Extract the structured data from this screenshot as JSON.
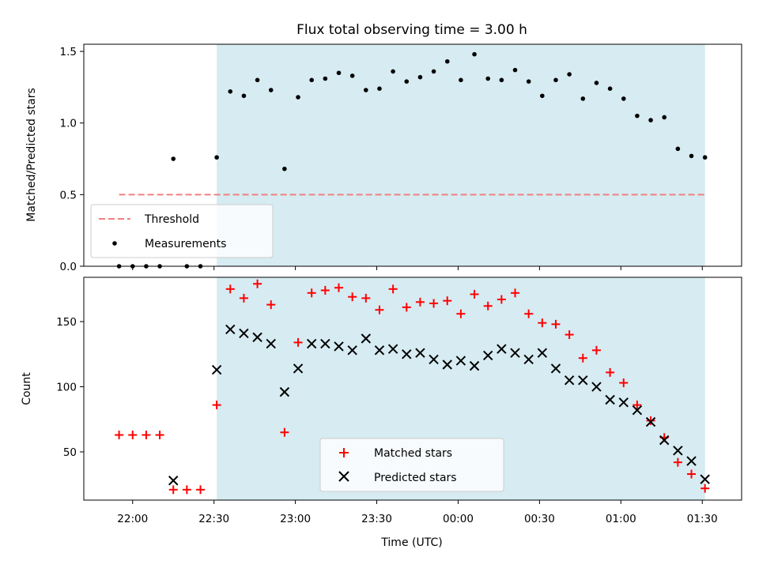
{
  "chart_data": [
    {
      "type": "scatter",
      "title": "Flux total observing time = 3.00 h",
      "ylabel": "Matched/Predicted stars",
      "xlabel": "",
      "ylim": [
        0,
        1.55
      ],
      "y_ticks": [
        "0.0",
        "0.5",
        "1.0",
        "1.5"
      ],
      "y_tick_values": [
        0,
        0.5,
        1.0,
        1.5
      ],
      "threshold": {
        "name": "Threshold",
        "value": 0.5,
        "x_start": "21:55",
        "x_end": "01:31",
        "color": "#f08080"
      },
      "shaded_interval": {
        "x_start": "22:31",
        "x_end": "01:31",
        "color": "#add8e6"
      },
      "series": [
        {
          "name": "Measurements",
          "color": "#000000",
          "x": [
            "21:55",
            "22:00",
            "22:05",
            "22:10",
            "22:15",
            "22:20",
            "22:25",
            "22:31",
            "22:36",
            "22:41",
            "22:46",
            "22:51",
            "22:56",
            "23:01",
            "23:06",
            "23:11",
            "23:16",
            "23:21",
            "23:26",
            "23:31",
            "23:36",
            "23:41",
            "23:46",
            "23:51",
            "23:56",
            "00:01",
            "00:06",
            "00:11",
            "00:16",
            "00:21",
            "00:26",
            "00:31",
            "00:36",
            "00:41",
            "00:46",
            "00:51",
            "00:56",
            "01:01",
            "01:06",
            "01:11",
            "01:16",
            "01:21",
            "01:26",
            "01:31"
          ],
          "values": [
            0,
            0,
            0,
            0,
            0.75,
            0,
            0,
            0.76,
            1.22,
            1.19,
            1.3,
            1.23,
            0.68,
            1.18,
            1.3,
            1.31,
            1.35,
            1.33,
            1.23,
            1.24,
            1.36,
            1.29,
            1.32,
            1.36,
            1.43,
            1.3,
            1.48,
            1.31,
            1.3,
            1.37,
            1.29,
            1.19,
            1.3,
            1.34,
            1.17,
            1.28,
            1.24,
            1.17,
            1.05,
            1.02,
            1.04,
            0.82,
            0.77,
            0.76
          ]
        }
      ],
      "legend": {
        "position": "lower-left",
        "entries": [
          "Threshold",
          "Measurements"
        ]
      }
    },
    {
      "type": "scatter",
      "title": "",
      "xlabel": "Time (UTC)",
      "ylabel": "Count",
      "ylim": [
        13,
        184
      ],
      "y_ticks": [
        "50",
        "100",
        "150"
      ],
      "y_tick_values": [
        50,
        100,
        150
      ],
      "x_ticks": [
        "22:00",
        "22:30",
        "23:00",
        "23:30",
        "00:00",
        "00:30",
        "01:00",
        "01:30"
      ],
      "shaded_interval": {
        "x_start": "22:31",
        "x_end": "01:31",
        "color": "#add8e6"
      },
      "series": [
        {
          "name": "Matched stars",
          "marker": "+",
          "color": "#ff0000",
          "x": [
            "21:55",
            "22:00",
            "22:05",
            "22:10",
            "22:15",
            "22:20",
            "22:25",
            "22:31",
            "22:36",
            "22:41",
            "22:46",
            "22:51",
            "22:56",
            "23:01",
            "23:06",
            "23:11",
            "23:16",
            "23:21",
            "23:26",
            "23:31",
            "23:36",
            "23:41",
            "23:46",
            "23:51",
            "23:56",
            "00:01",
            "00:06",
            "00:11",
            "00:16",
            "00:21",
            "00:26",
            "00:31",
            "00:36",
            "00:41",
            "00:46",
            "00:51",
            "00:56",
            "01:01",
            "01:06",
            "01:11",
            "01:16",
            "01:21",
            "01:26",
            "01:31"
          ],
          "values": [
            63,
            63,
            63,
            63,
            21,
            21,
            21,
            86,
            175,
            168,
            179,
            163,
            65,
            134,
            172,
            174,
            176,
            169,
            168,
            159,
            175,
            161,
            165,
            164,
            166,
            156,
            171,
            162,
            167,
            172,
            156,
            149,
            148,
            140,
            122,
            128,
            111,
            103,
            86,
            74,
            61,
            42,
            33,
            22
          ]
        },
        {
          "name": "Predicted stars",
          "marker": "x",
          "color": "#000000",
          "x": [
            "22:15",
            "22:31",
            "22:36",
            "22:41",
            "22:46",
            "22:51",
            "22:56",
            "23:01",
            "23:06",
            "23:11",
            "23:16",
            "23:21",
            "23:26",
            "23:31",
            "23:36",
            "23:41",
            "23:46",
            "23:51",
            "23:56",
            "00:01",
            "00:06",
            "00:11",
            "00:16",
            "00:21",
            "00:26",
            "00:31",
            "00:36",
            "00:41",
            "00:46",
            "00:51",
            "00:56",
            "01:01",
            "01:06",
            "01:11",
            "01:16",
            "01:21",
            "01:26",
            "01:31"
          ],
          "values": [
            28,
            113,
            144,
            141,
            138,
            133,
            96,
            114,
            133,
            133,
            131,
            128,
            137,
            128,
            129,
            125,
            126,
            121,
            117,
            120,
            116,
            124,
            129,
            126,
            121,
            126,
            114,
            105,
            105,
            100,
            90,
            88,
            82,
            73,
            59,
            51,
            43,
            29
          ]
        }
      ],
      "legend": {
        "position": "lower-center",
        "entries": [
          "Matched stars",
          "Predicted stars"
        ]
      }
    }
  ]
}
